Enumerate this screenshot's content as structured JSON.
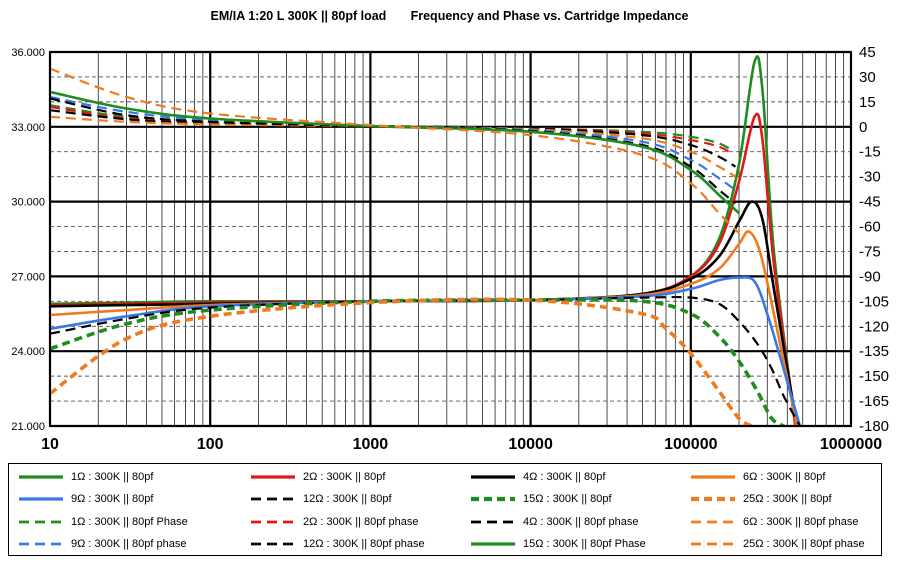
{
  "chart_data": {
    "type": "line",
    "title": "EM/IA 1:20 L 300K || 80pf load       Frequency and Phase vs. Cartridge Impedance",
    "x_scale": "log",
    "xlim": [
      10,
      1000000
    ],
    "x_tick_labels": [
      "10",
      "100",
      "1000",
      "10000",
      "100000",
      "1000000"
    ],
    "y_left_lim": [
      21,
      36
    ],
    "y_left_tick_labels": [
      "21.000",
      "24.000",
      "27.000",
      "30.000",
      "33.000",
      "36.000"
    ],
    "y_right_lim": [
      -180,
      45
    ],
    "y_right_tick_labels": [
      "45",
      "30",
      "15",
      "0",
      "-15",
      "-30",
      "-45",
      "-60",
      "-75",
      "-90",
      "-105",
      "-120",
      "-135",
      "-150",
      "-165",
      "-180"
    ],
    "grid": true,
    "legend_position": "bottom",
    "series": [
      {
        "name": "1Ω : 300K || 80pf",
        "axis": "left",
        "color": "#1e8c1e",
        "style": "solid",
        "x": [
          10,
          30,
          100,
          1000,
          10000,
          50000,
          100000,
          150000,
          200000,
          250000,
          280000,
          330000,
          450000
        ],
        "y": [
          25.9,
          25.95,
          26.0,
          26.0,
          26.05,
          26.3,
          27.0,
          28.5,
          31.5,
          35.6,
          34.5,
          28.0,
          21.0
        ]
      },
      {
        "name": "2Ω : 300K || 80pf",
        "axis": "left",
        "color": "#e01818",
        "style": "solid",
        "x": [
          10,
          30,
          100,
          1000,
          10000,
          50000,
          100000,
          150000,
          200000,
          250000,
          280000,
          330000,
          450000
        ],
        "y": [
          25.85,
          25.9,
          25.95,
          26.0,
          26.05,
          26.3,
          27.0,
          28.3,
          30.8,
          33.4,
          32.5,
          27.5,
          21.0
        ]
      },
      {
        "name": "4Ω : 300K || 80pf",
        "axis": "left",
        "color": "#000000",
        "style": "solid",
        "x": [
          10,
          30,
          100,
          1000,
          10000,
          50000,
          100000,
          150000,
          200000,
          240000,
          280000,
          330000,
          460000
        ],
        "y": [
          25.8,
          25.85,
          25.9,
          26.0,
          26.05,
          26.3,
          26.9,
          27.8,
          29.2,
          30.0,
          29.3,
          26.5,
          21.0
        ]
      },
      {
        "name": "6Ω : 300K || 80pf",
        "axis": "left",
        "color": "#f07a1e",
        "style": "solid",
        "x": [
          10,
          30,
          100,
          1000,
          10000,
          50000,
          100000,
          150000,
          200000,
          230000,
          270000,
          330000,
          460000
        ],
        "y": [
          25.45,
          25.65,
          25.85,
          26.0,
          26.05,
          26.25,
          26.7,
          27.3,
          28.3,
          28.8,
          28.0,
          25.5,
          21.0
        ]
      },
      {
        "name": "9Ω : 300K || 80pf",
        "axis": "left",
        "color": "#3a78e6",
        "style": "solid",
        "x": [
          10,
          30,
          100,
          1000,
          10000,
          50000,
          100000,
          150000,
          200000,
          250000,
          300000,
          360000,
          480000
        ],
        "y": [
          24.9,
          25.4,
          25.8,
          26.0,
          26.05,
          26.2,
          26.5,
          26.85,
          26.95,
          26.8,
          25.5,
          23.8,
          21.0
        ]
      },
      {
        "name": "12Ω : 300K || 80pf",
        "axis": "left",
        "color": "#000000",
        "style": "dash",
        "x": [
          10,
          30,
          100,
          1000,
          10000,
          50000,
          100000,
          150000,
          200000,
          260000,
          320000,
          380000,
          480000
        ],
        "y": [
          24.7,
          25.3,
          25.75,
          26.0,
          26.05,
          26.15,
          26.15,
          25.9,
          25.2,
          24.3,
          23.3,
          22.2,
          21.0
        ]
      },
      {
        "name": "15Ω : 300K || 80pf",
        "axis": "left",
        "color": "#1e8c1e",
        "style": "thickdash",
        "x": [
          10,
          30,
          100,
          1000,
          10000,
          50000,
          100000,
          150000,
          200000,
          260000,
          320000,
          380000
        ],
        "y": [
          24.1,
          25.1,
          25.65,
          26.0,
          26.05,
          26.0,
          25.5,
          24.6,
          23.6,
          22.4,
          21.3,
          21.0
        ]
      },
      {
        "name": "25Ω : 300K || 80pf",
        "axis": "left",
        "color": "#f07a1e",
        "style": "thickdash",
        "x": [
          10,
          30,
          100,
          1000,
          10000,
          50000,
          70000,
          100000,
          150000,
          200000,
          240000
        ],
        "y": [
          22.3,
          24.5,
          25.4,
          25.95,
          26.05,
          25.5,
          24.9,
          23.9,
          22.4,
          21.3,
          21.0
        ]
      },
      {
        "name": "1Ω : 300K || 80pf Phase",
        "axis": "right",
        "color": "#1e8c1e",
        "style": "dash",
        "x": [
          10,
          30,
          100,
          1000,
          10000,
          50000,
          100000,
          150000,
          180000
        ],
        "y": [
          13,
          6,
          3,
          0.5,
          -1,
          -3,
          -6,
          -10,
          -14
        ]
      },
      {
        "name": "2Ω : 300K || 80pf phase",
        "axis": "right",
        "color": "#e01818",
        "style": "dash",
        "x": [
          10,
          30,
          100,
          1000,
          10000,
          50000,
          100000,
          150000,
          180000
        ],
        "y": [
          12,
          5,
          2.5,
          0.5,
          -1,
          -4,
          -8,
          -12,
          -16
        ]
      },
      {
        "name": "4Ω : 300K || 80pf phase",
        "axis": "right",
        "color": "#000000",
        "style": "dash",
        "x": [
          10,
          30,
          100,
          1000,
          10000,
          50000,
          100000,
          150000,
          190000
        ],
        "y": [
          10,
          4.5,
          2,
          0.5,
          -1,
          -5,
          -11,
          -18,
          -24
        ]
      },
      {
        "name": "6Ω : 300K || 80pf phase",
        "axis": "right",
        "color": "#f07a1e",
        "style": "dash",
        "x": [
          10,
          30,
          100,
          1000,
          10000,
          50000,
          100000,
          150000,
          190000
        ],
        "y": [
          6,
          3,
          1.5,
          0.3,
          -1.5,
          -7,
          -15,
          -24,
          -30
        ]
      },
      {
        "name": "9Ω : 300K || 80pf phase",
        "axis": "right",
        "color": "#3a78e6",
        "style": "dash",
        "x": [
          10,
          30,
          100,
          1000,
          10000,
          50000,
          100000,
          150000,
          190000
        ],
        "y": [
          18,
          9,
          4,
          0.5,
          -2,
          -9,
          -20,
          -31,
          -38
        ]
      },
      {
        "name": "12Ω : 300K || 80pf phase",
        "axis": "right",
        "color": "#000000",
        "style": "dash",
        "x": [
          10,
          30,
          100,
          1000,
          10000,
          50000,
          100000,
          150000,
          190000
        ],
        "y": [
          17,
          7,
          3,
          0.3,
          -2.5,
          -11,
          -24,
          -38,
          -46
        ]
      },
      {
        "name": "15Ω : 300K || 80pf Phase",
        "axis": "right",
        "color": "#1e8c1e",
        "style": "solid",
        "x": [
          10,
          30,
          100,
          1000,
          10000,
          50000,
          100000,
          150000,
          200000
        ],
        "y": [
          21,
          11,
          5,
          0.5,
          -3,
          -12,
          -26,
          -41,
          -52
        ]
      },
      {
        "name": "25Ω : 300K || 80pf phase",
        "axis": "right",
        "color": "#f07a1e",
        "style": "dash",
        "x": [
          10,
          30,
          100,
          1000,
          10000,
          50000,
          100000,
          150000,
          200000
        ],
        "y": [
          35,
          18,
          8,
          1,
          -5,
          -17,
          -34,
          -52,
          -64
        ]
      }
    ]
  },
  "legend": {
    "items": [
      {
        "label": "1Ω : 300K || 80pf",
        "color": "#1e8c1e",
        "style": "solid"
      },
      {
        "label": "2Ω : 300K || 80pf",
        "color": "#e01818",
        "style": "solid"
      },
      {
        "label": "4Ω : 300K || 80pf",
        "color": "#000000",
        "style": "solid"
      },
      {
        "label": "6Ω : 300K || 80pf",
        "color": "#f07a1e",
        "style": "solid"
      },
      {
        "label": "9Ω : 300K || 80pf",
        "color": "#3a78e6",
        "style": "solid"
      },
      {
        "label": "12Ω : 300K || 80pf",
        "color": "#000000",
        "style": "dash"
      },
      {
        "label": "15Ω : 300K || 80pf",
        "color": "#1e8c1e",
        "style": "thickdash"
      },
      {
        "label": "25Ω : 300K || 80pf",
        "color": "#f07a1e",
        "style": "thickdash"
      },
      {
        "label": "1Ω : 300K || 80pf Phase",
        "color": "#1e8c1e",
        "style": "dash"
      },
      {
        "label": "2Ω : 300K || 80pf phase",
        "color": "#e01818",
        "style": "dash"
      },
      {
        "label": "4Ω : 300K || 80pf phase",
        "color": "#000000",
        "style": "dash"
      },
      {
        "label": "6Ω : 300K || 80pf phase",
        "color": "#f07a1e",
        "style": "dash"
      },
      {
        "label": "9Ω : 300K || 80pf phase",
        "color": "#3a78e6",
        "style": "dash"
      },
      {
        "label": "12Ω : 300K || 80pf phase",
        "color": "#000000",
        "style": "dash"
      },
      {
        "label": "15Ω : 300K || 80pf Phase",
        "color": "#1e8c1e",
        "style": "solid"
      },
      {
        "label": "25Ω : 300K || 80pf phase",
        "color": "#f07a1e",
        "style": "dash"
      }
    ]
  }
}
